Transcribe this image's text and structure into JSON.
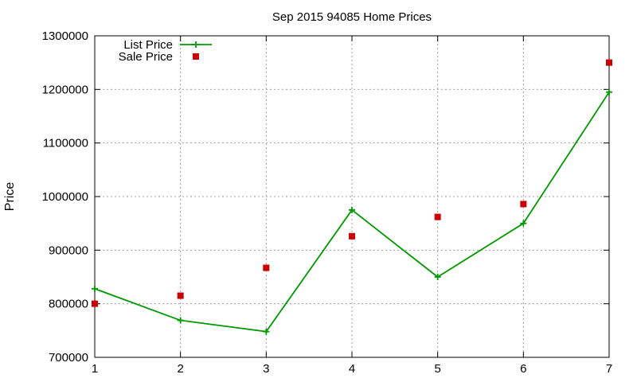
{
  "chart_data": {
    "type": "line",
    "title": "Sep 2015 94085 Home Prices",
    "xlabel": "",
    "ylabel": "Price",
    "xlim": [
      1,
      7
    ],
    "ylim": [
      700000,
      1300000
    ],
    "x_ticks": [
      1,
      2,
      3,
      4,
      5,
      6,
      7
    ],
    "y_ticks": [
      700000,
      800000,
      900000,
      1000000,
      1100000,
      1200000,
      1300000
    ],
    "grid": true,
    "legend_position": "top-left",
    "series": [
      {
        "name": "List Price",
        "style": "line-with-plus-markers",
        "color": "#009900",
        "x": [
          1,
          2,
          3,
          4,
          5,
          6,
          7
        ],
        "values": [
          828000,
          769000,
          748000,
          975000,
          850000,
          950000,
          1195000
        ]
      },
      {
        "name": "Sale Price",
        "style": "square-markers",
        "color": "#cc0000",
        "x": [
          1,
          2,
          3,
          4,
          5,
          6,
          7
        ],
        "values": [
          800000,
          815000,
          867000,
          926000,
          962000,
          986000,
          1250000
        ]
      }
    ]
  }
}
